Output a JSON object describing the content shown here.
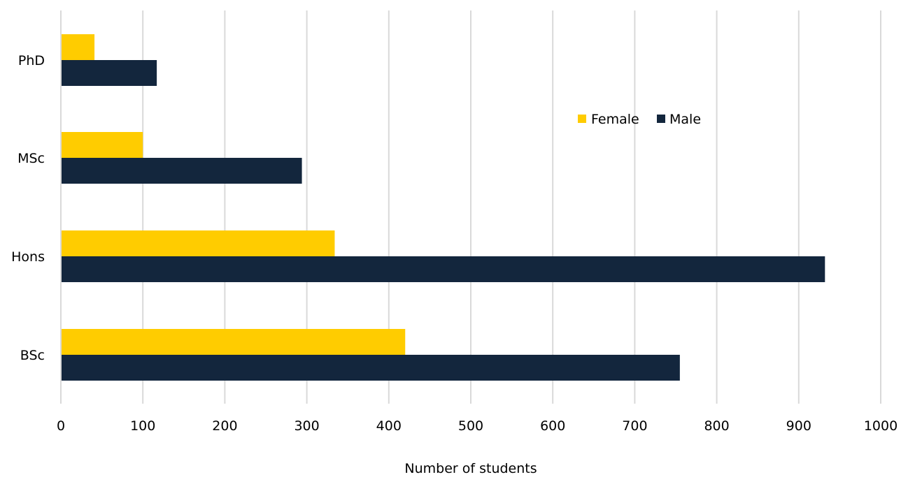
{
  "chart_data": {
    "type": "bar",
    "orientation": "horizontal",
    "categories": [
      "BSc",
      "Hons",
      "MSc",
      "PhD"
    ],
    "series": [
      {
        "name": "Female",
        "color": "#FFCC00",
        "values": [
          420,
          334,
          100,
          41
        ]
      },
      {
        "name": "Male",
        "color": "#13263D",
        "values": [
          755,
          932,
          294,
          117
        ]
      }
    ],
    "xlabel": "Number of students",
    "ylabel": "",
    "title": "",
    "xlim": [
      0,
      1000
    ],
    "xticks": [
      "0",
      "100",
      "200",
      "300",
      "400",
      "500",
      "600",
      "700",
      "800",
      "900",
      "1000"
    ],
    "grid": "vertical",
    "gridline_color": "#D9D9D9",
    "legend_placement": "right"
  }
}
